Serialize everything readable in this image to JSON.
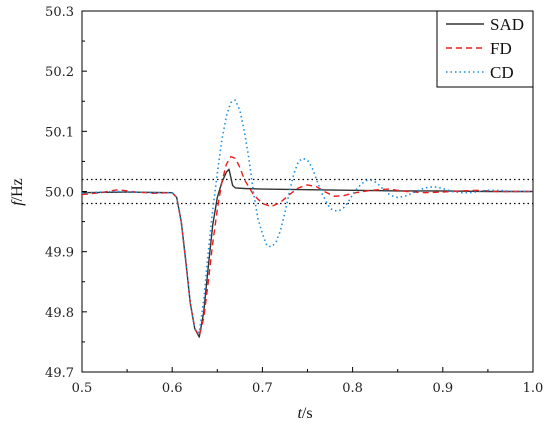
{
  "chart_data": {
    "type": "line",
    "xlabel_italic": "t",
    "xlabel_unit": "/s",
    "ylabel_italic": "f",
    "ylabel_unit": "/Hz",
    "xlim": [
      0.5,
      1.0
    ],
    "ylim": [
      49.7,
      50.3
    ],
    "xticks": [
      "0.5",
      "0.6",
      "0.7",
      "0.8",
      "0.9",
      "1.0"
    ],
    "yticks": [
      "49.7",
      "49.8",
      "49.9",
      "50.0",
      "50.1",
      "50.2",
      "50.3"
    ],
    "grid": false,
    "legend_position": "top-right",
    "reference_lines": [
      50.02,
      49.98
    ],
    "series": [
      {
        "name": "SAD",
        "color": "#333333",
        "style": "solid",
        "x": [
          0.5,
          0.55,
          0.6,
          0.605,
          0.61,
          0.615,
          0.62,
          0.625,
          0.63,
          0.635,
          0.64,
          0.645,
          0.65,
          0.655,
          0.66,
          0.663,
          0.667,
          0.67,
          0.68,
          0.7,
          0.75,
          0.8,
          0.85,
          0.9,
          0.95,
          1.0
        ],
        "y": [
          49.998,
          49.999,
          49.998,
          49.99,
          49.95,
          49.885,
          49.815,
          49.772,
          49.758,
          49.8,
          49.875,
          49.945,
          49.99,
          50.015,
          50.032,
          50.037,
          50.01,
          50.006,
          50.005,
          50.004,
          50.003,
          50.002,
          50.001,
          50.001,
          50.0,
          50.0
        ]
      },
      {
        "name": "FD",
        "color": "#ee1c1c",
        "style": "dashed",
        "x": [
          0.5,
          0.52,
          0.54,
          0.56,
          0.58,
          0.6,
          0.605,
          0.61,
          0.615,
          0.62,
          0.625,
          0.63,
          0.635,
          0.64,
          0.645,
          0.65,
          0.655,
          0.66,
          0.665,
          0.67,
          0.675,
          0.68,
          0.69,
          0.7,
          0.71,
          0.72,
          0.73,
          0.74,
          0.75,
          0.76,
          0.77,
          0.78,
          0.79,
          0.8,
          0.82,
          0.84,
          0.86,
          0.88,
          0.9,
          0.92,
          0.94,
          0.96,
          0.98,
          1.0
        ],
        "y": [
          49.995,
          49.998,
          50.003,
          49.999,
          49.997,
          49.998,
          49.99,
          49.95,
          49.885,
          49.815,
          49.772,
          49.76,
          49.79,
          49.85,
          49.915,
          49.97,
          50.015,
          50.045,
          50.058,
          50.055,
          50.04,
          50.02,
          49.995,
          49.98,
          49.975,
          49.982,
          49.995,
          50.006,
          50.011,
          50.008,
          49.999,
          49.992,
          49.993,
          49.997,
          50.002,
          50.004,
          50.0,
          49.998,
          49.999,
          50.001,
          50.002,
          50.0,
          50.0,
          50.0
        ]
      },
      {
        "name": "CD",
        "color": "#1e8fe0",
        "style": "dotted",
        "x": [
          0.5,
          0.52,
          0.54,
          0.56,
          0.58,
          0.6,
          0.605,
          0.61,
          0.615,
          0.62,
          0.625,
          0.63,
          0.635,
          0.64,
          0.645,
          0.65,
          0.655,
          0.66,
          0.665,
          0.67,
          0.675,
          0.68,
          0.685,
          0.69,
          0.695,
          0.7,
          0.705,
          0.71,
          0.715,
          0.72,
          0.725,
          0.73,
          0.735,
          0.74,
          0.745,
          0.75,
          0.755,
          0.76,
          0.765,
          0.77,
          0.775,
          0.78,
          0.785,
          0.79,
          0.795,
          0.8,
          0.805,
          0.81,
          0.815,
          0.82,
          0.825,
          0.83,
          0.835,
          0.84,
          0.845,
          0.85,
          0.86,
          0.87,
          0.88,
          0.89,
          0.9,
          0.91,
          0.92,
          0.93,
          0.94,
          0.95,
          0.96,
          0.97,
          0.98,
          1.0
        ],
        "y": [
          49.997,
          49.999,
          50.0,
          49.999,
          49.998,
          49.998,
          49.99,
          49.95,
          49.885,
          49.815,
          49.772,
          49.765,
          49.82,
          49.9,
          49.97,
          50.03,
          50.085,
          50.125,
          50.148,
          50.152,
          50.135,
          50.1,
          50.055,
          50.0,
          49.955,
          49.93,
          49.91,
          49.908,
          49.915,
          49.935,
          49.965,
          50.0,
          50.03,
          50.05,
          50.055,
          50.052,
          50.04,
          50.02,
          50.0,
          49.985,
          49.972,
          49.968,
          49.968,
          49.973,
          49.982,
          49.995,
          50.005,
          50.013,
          50.018,
          50.019,
          50.016,
          50.01,
          50.002,
          49.996,
          49.992,
          49.99,
          49.993,
          50.0,
          50.006,
          50.008,
          50.005,
          50.0,
          49.998,
          49.998,
          50.0,
          50.002,
          50.002,
          50.001,
          50.0,
          50.0
        ]
      }
    ]
  }
}
